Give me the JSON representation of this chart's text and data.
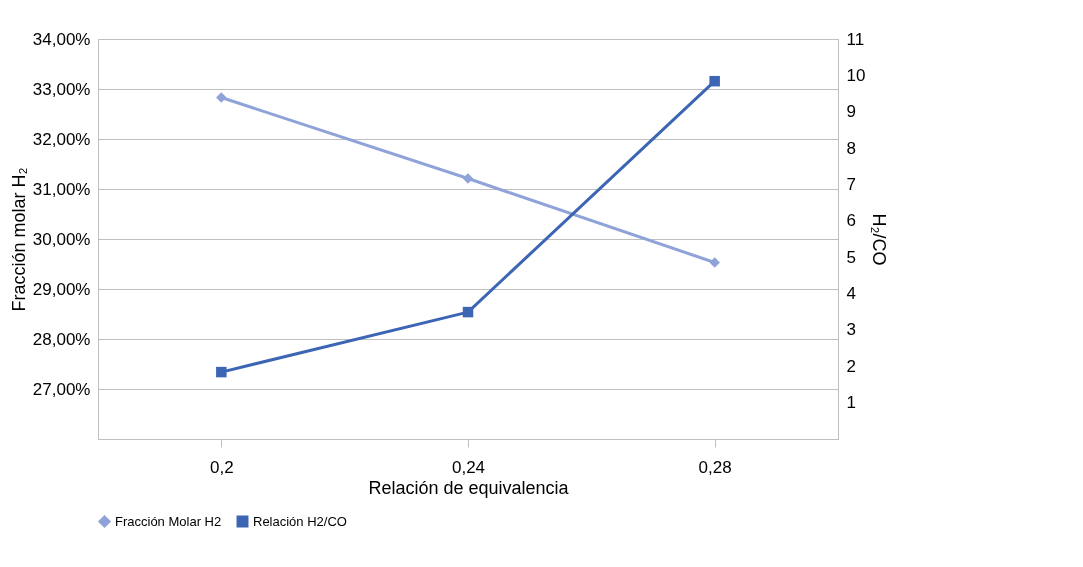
{
  "chart_data": {
    "type": "line",
    "xlabel": "Relación de equivalencia",
    "ylabel": "Fracción molar H₂",
    "y2label": "H₂/CO",
    "categories": [
      "0,2",
      "0,24",
      "0,28"
    ],
    "series": [
      {
        "name": "Fracción Molar H2",
        "color": "#8fa3d9",
        "values": [
          32.83,
          31.21,
          29.53
        ],
        "marker": "diamond"
      },
      {
        "name": "Relación H2/CO",
        "color": "#3c65b4",
        "values": [
          1.84,
          3.49,
          9.84
        ],
        "marker": "square",
        "axis": "y2"
      }
    ],
    "ylim": [
      26,
      34
    ],
    "yticks": [
      {
        "value": 26,
        "label": null
      },
      {
        "value": 27,
        "label": "27,00%"
      },
      {
        "value": 28,
        "label": "28,00%"
      },
      {
        "value": 29,
        "label": "29,00%"
      },
      {
        "value": 30,
        "label": "30,00%"
      },
      {
        "value": 31,
        "label": "31,00%"
      },
      {
        "value": 32,
        "label": "32,00%"
      },
      {
        "value": 33,
        "label": "33,00%"
      },
      {
        "value": 34,
        "label": "34,00%"
      }
    ],
    "y2lim": [
      0,
      11
    ],
    "y2ticks": [
      1,
      2,
      3,
      4,
      5,
      6,
      7,
      8,
      9,
      10,
      11
    ],
    "grid": "y",
    "legend": "bottom",
    "line_style": "solid"
  }
}
